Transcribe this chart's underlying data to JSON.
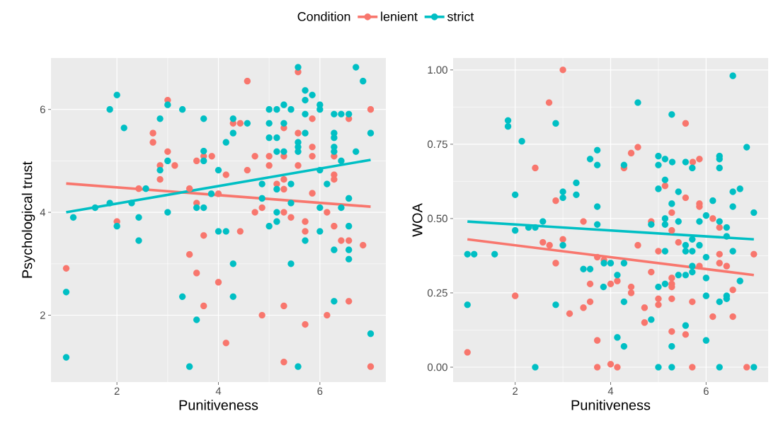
{
  "chart_data": [
    {
      "type": "scatter",
      "legend_title": "Condition",
      "legend": "top",
      "xlabel": "Punitiveness",
      "ylabel": "Psychological trust",
      "marker": "circle",
      "grid": true,
      "xlim": [
        0.7,
        7.3
      ],
      "ylim": [
        0.7,
        7.0
      ],
      "xticks": [
        2,
        4,
        6
      ],
      "yticks": [
        2,
        4,
        6
      ],
      "series": [
        {
          "name": "lenient",
          "color": "#f8766d",
          "x": [
            3.0,
            2.71,
            2.71,
            3.0,
            3.57,
            3.71,
            3.87,
            2.85,
            3.14,
            2.85,
            2.43,
            3.43,
            4.0,
            3.57,
            2.0,
            3.71,
            3.43,
            1.0,
            3.57,
            4.0,
            3.71,
            5.57,
            4.57,
            7.0,
            5.85,
            6.57,
            4.29,
            4.43,
            5.29,
            5.57,
            5.85,
            4.72,
            5.0,
            5.29,
            5.85,
            6.28,
            5.0,
            5.57,
            4.57,
            4.15,
            6.28,
            6.28,
            5.29,
            5.15,
            5.29,
            5.85,
            4.86,
            4.72,
            5.29,
            6.14,
            5.43,
            5.71,
            6.28,
            4.43,
            5.71,
            6.42,
            6.57,
            6.85,
            6.57,
            5.29,
            4.86,
            6.14,
            5.71,
            4.15,
            5.29,
            7.0
          ],
          "values": [
            6.18,
            5.54,
            5.36,
            5.18,
            5.0,
            5.09,
            5.09,
            4.91,
            4.91,
            4.64,
            4.46,
            4.46,
            4.36,
            4.18,
            3.82,
            3.55,
            3.18,
            2.91,
            2.82,
            2.64,
            2.18,
            6.73,
            6.55,
            6.0,
            5.82,
            5.82,
            5.73,
            5.73,
            5.64,
            5.54,
            5.27,
            5.09,
            5.09,
            5.09,
            5.09,
            5.09,
            4.91,
            4.91,
            4.82,
            4.73,
            4.73,
            4.64,
            4.64,
            4.55,
            4.45,
            4.37,
            4.09,
            4.0,
            4.0,
            4.0,
            3.9,
            3.82,
            3.73,
            3.63,
            3.63,
            3.45,
            3.45,
            3.36,
            2.27,
            2.18,
            2.0,
            2.0,
            1.82,
            1.46,
            1.09,
            1.0
          ]
        },
        {
          "name": "strict",
          "color": "#00bfc4",
          "x": [
            2.0,
            1.86,
            3.0,
            3.29,
            2.85,
            3.71,
            2.14,
            3.71,
            3.71,
            3.0,
            2.85,
            4.0,
            2.57,
            1.57,
            1.86,
            2.29,
            3.86,
            3.57,
            3.71,
            3.0,
            1.14,
            2.0,
            2.43,
            2.43,
            4.0,
            1.0,
            3.29,
            3.57,
            1.0,
            3.43,
            5.57,
            6.71,
            6.85,
            5.71,
            5.85,
            5.71,
            6.0,
            6.0,
            5.0,
            5.15,
            5.29,
            5.43,
            5.71,
            6.28,
            6.42,
            6.57,
            4.29,
            4.57,
            5.0,
            5.29,
            4.29,
            5.71,
            6.28,
            6.28,
            7.0,
            5.0,
            5.15,
            4.15,
            5.57,
            5.57,
            5.57,
            6.28,
            6.28,
            5.15,
            5.29,
            6.71,
            6.42,
            6.0,
            4.86,
            5.15,
            5.43,
            6.14,
            4.86,
            6.57,
            5.43,
            5.15,
            6.0,
            6.42,
            5.15,
            5.0,
            6.57,
            4.15,
            6.0,
            5.71,
            6.28,
            6.57,
            6.57,
            4.29,
            5.43,
            4.29,
            6.28,
            7.0,
            5.57
          ],
          "values": [
            6.28,
            6.0,
            6.09,
            6.0,
            5.82,
            5.82,
            5.64,
            5.19,
            5.0,
            5.0,
            4.82,
            4.82,
            4.46,
            4.09,
            4.18,
            4.18,
            4.36,
            4.09,
            4.09,
            4.0,
            3.9,
            3.73,
            3.9,
            3.45,
            3.63,
            2.45,
            2.36,
            1.91,
            1.18,
            1.0,
            6.82,
            6.82,
            6.55,
            6.37,
            6.28,
            6.18,
            6.09,
            6.0,
            6.0,
            6.0,
            6.09,
            6.0,
            5.91,
            5.91,
            5.91,
            5.91,
            5.82,
            5.73,
            5.73,
            5.73,
            5.54,
            5.54,
            5.54,
            5.45,
            5.54,
            5.45,
            5.45,
            5.36,
            5.36,
            5.27,
            5.18,
            5.27,
            5.18,
            5.18,
            5.18,
            5.18,
            5.0,
            4.82,
            4.55,
            4.45,
            4.55,
            4.55,
            4.27,
            4.27,
            4.18,
            4.0,
            4.09,
            4.09,
            3.82,
            3.73,
            3.73,
            3.63,
            3.63,
            3.45,
            3.27,
            3.27,
            3.09,
            3.0,
            3.0,
            2.36,
            2.27,
            1.64,
            1.0
          ]
        },
        {
          "color": "#f8766d",
          "type": "line",
          "marker": "none",
          "x": [
            1,
            7
          ],
          "values": [
            4.56,
            4.11
          ]
        },
        {
          "color": "#00bfc4",
          "type": "line",
          "marker": "none",
          "x": [
            1,
            7
          ],
          "values": [
            4.0,
            5.02
          ]
        }
      ]
    },
    {
      "type": "scatter",
      "xlabel": "Punitiveness",
      "ylabel": "WOA",
      "marker": "circle",
      "grid": true,
      "xlim": [
        0.7,
        7.3
      ],
      "ylim": [
        -0.05,
        1.04
      ],
      "xticks": [
        2,
        4,
        6
      ],
      "yticks": [
        {
          "value": 0,
          "label": "0.00"
        },
        0.25,
        {
          "value": 0.5,
          "label": "0.50"
        },
        0.75,
        {
          "value": 1,
          "label": "1.00"
        }
      ],
      "series": [
        {
          "color": "#f8766d",
          "x": [
            3.0,
            2.71,
            2.42,
            2.85,
            3.43,
            2.58,
            2.72,
            3.0,
            2.85,
            3.57,
            2.0,
            3.57,
            3.43,
            3.14,
            1.0,
            3.72,
            3.72,
            3.72,
            5.57,
            4.57,
            4.43,
            4.28,
            5.72,
            5.86,
            5.14,
            5.57,
            5.86,
            5.86,
            5.28,
            6.14,
            4.85,
            6.28,
            5.28,
            4.57,
            5.42,
            5.0,
            7.0,
            6.28,
            6.28,
            6.43,
            3.86,
            5.86,
            4.85,
            5.28,
            5.28,
            5.28,
            4.14,
            4.0,
            4.43,
            4.43,
            6.56,
            5.0,
            5.0,
            5.28,
            5.71,
            4.71,
            6.14,
            6.56,
            4.71,
            5.28,
            5.57,
            4.0,
            4.14,
            5.71,
            6.85
          ],
          "values": [
            1.0,
            0.89,
            0.67,
            0.56,
            0.49,
            0.42,
            0.41,
            0.43,
            0.35,
            0.28,
            0.24,
            0.22,
            0.2,
            0.18,
            0.05,
            0.37,
            0.09,
            0.0,
            0.82,
            0.74,
            0.72,
            0.67,
            0.69,
            0.7,
            0.61,
            0.57,
            0.55,
            0.54,
            0.52,
            0.5,
            0.49,
            0.47,
            0.46,
            0.41,
            0.42,
            0.39,
            0.38,
            0.38,
            0.35,
            0.34,
            0.36,
            0.34,
            0.32,
            0.3,
            0.28,
            0.27,
            0.29,
            0.28,
            0.27,
            0.25,
            0.26,
            0.23,
            0.21,
            0.23,
            0.22,
            0.2,
            0.17,
            0.17,
            0.15,
            0.12,
            0.11,
            0.01,
            0.0,
            0.0,
            0.0
          ]
        },
        {
          "color": "#00bfc4",
          "x": [
            1.85,
            1.85,
            2.85,
            2.14,
            3.28,
            2.0,
            3.28,
            3.0,
            3.0,
            2.58,
            2.28,
            2.42,
            2.0,
            3.0,
            1.14,
            1.0,
            1.57,
            3.43,
            3.57,
            1.0,
            2.85,
            2.42,
            3.57,
            3.72,
            3.72,
            3.72,
            3.72,
            6.56,
            4.57,
            5.28,
            6.85,
            5.0,
            5.14,
            5.29,
            5.0,
            4.28,
            5.57,
            5.71,
            6.28,
            6.28,
            6.28,
            5.14,
            5.0,
            5.42,
            6.56,
            6.71,
            5.28,
            6.14,
            6.56,
            7.0,
            6.0,
            4.85,
            5.14,
            5.14,
            5.42,
            5.86,
            6.28,
            6.43,
            6.43,
            5.71,
            5.57,
            5.57,
            5.71,
            5.86,
            5.14,
            6.56,
            6.0,
            4.0,
            4.28,
            3.86,
            5.71,
            5.71,
            5.42,
            5.57,
            4.14,
            6.0,
            6.71,
            5.0,
            5.14,
            3.85,
            6.0,
            6.28,
            6.43,
            6.43,
            4.28,
            4.85,
            5.57,
            4.14,
            4.28,
            6.0,
            5.28,
            5.0,
            5.28,
            6.28,
            7.0
          ],
          "values": [
            0.83,
            0.81,
            0.82,
            0.76,
            0.62,
            0.58,
            0.58,
            0.59,
            0.57,
            0.49,
            0.47,
            0.47,
            0.46,
            0.41,
            0.38,
            0.38,
            0.38,
            0.33,
            0.33,
            0.21,
            0.21,
            0.0,
            0.7,
            0.73,
            0.68,
            0.54,
            0.48,
            0.98,
            0.89,
            0.85,
            0.74,
            0.71,
            0.7,
            0.69,
            0.68,
            0.68,
            0.69,
            0.67,
            0.71,
            0.7,
            0.67,
            0.63,
            0.6,
            0.59,
            0.59,
            0.6,
            0.55,
            0.56,
            0.54,
            0.52,
            0.51,
            0.48,
            0.5,
            0.48,
            0.49,
            0.49,
            0.49,
            0.47,
            0.44,
            0.43,
            0.41,
            0.39,
            0.39,
            0.41,
            0.39,
            0.39,
            0.37,
            0.35,
            0.35,
            0.35,
            0.34,
            0.32,
            0.31,
            0.31,
            0.31,
            0.3,
            0.29,
            0.27,
            0.28,
            0.27,
            0.24,
            0.22,
            0.23,
            0.24,
            0.22,
            0.16,
            0.14,
            0.1,
            0.07,
            0.09,
            0.07,
            0.0,
            0.0,
            0.0,
            0.0
          ]
        },
        {
          "color": "#f8766d",
          "type": "line",
          "marker": "none",
          "x": [
            1,
            7
          ],
          "values": [
            0.43,
            0.31
          ]
        },
        {
          "color": "#00bfc4",
          "type": "line",
          "marker": "none",
          "x": [
            1,
            7
          ],
          "values": [
            0.49,
            0.43
          ]
        }
      ]
    }
  ]
}
